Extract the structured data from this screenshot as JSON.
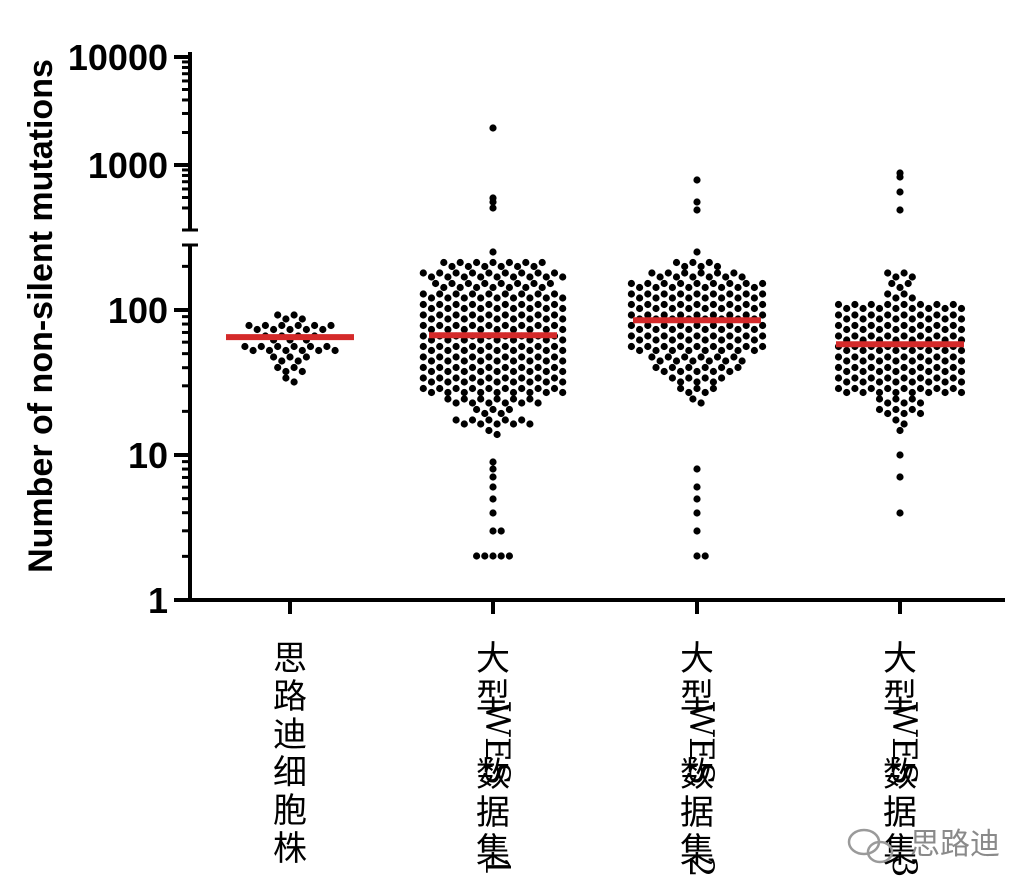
{
  "chart_data": {
    "type": "scatter",
    "subtype": "beeswarm",
    "ylabel": "Number of non-silent mutations",
    "yscale": "log",
    "ylim": [
      1,
      10000
    ],
    "axis_break": true,
    "yticks": [
      {
        "value": 1,
        "label": "1"
      },
      {
        "value": 10,
        "label": "10"
      },
      {
        "value": 100,
        "label": "100"
      },
      {
        "value": 1000,
        "label": "1000"
      },
      {
        "value": 10000,
        "label": "10000"
      }
    ],
    "categories": [
      "思路迪细胞株",
      "大型WES数据集1",
      "大型WES数据集2",
      "大型WES数据集3"
    ],
    "series": [
      {
        "category": "思路迪细胞株",
        "median": 65,
        "n_points": 45,
        "range": [
          33,
          98
        ],
        "outliers": []
      },
      {
        "category": "大型WES数据集1",
        "median": 67,
        "n_points": 480,
        "range": [
          2,
          2200
        ],
        "outliers": [
          2200,
          500,
          450,
          400,
          2,
          2,
          2,
          2,
          2,
          3,
          3,
          4,
          5,
          6,
          7,
          8,
          9
        ]
      },
      {
        "category": "大型WES数据集2",
        "median": 85,
        "n_points": 300,
        "range": [
          2,
          720
        ],
        "outliers": [
          720,
          450,
          380,
          2,
          2,
          3,
          4,
          5,
          6,
          8
        ]
      },
      {
        "category": "大型WES数据集3",
        "median": 58,
        "n_points": 300,
        "range": [
          4,
          850
        ],
        "outliers": [
          850,
          780,
          560,
          380,
          4,
          7,
          10
        ]
      }
    ],
    "point_color": "#000000",
    "median_color": "#d42a2a",
    "grid": false,
    "legend": "none"
  },
  "watermark": {
    "text": "思路迪",
    "icon": "wechat-icon"
  }
}
